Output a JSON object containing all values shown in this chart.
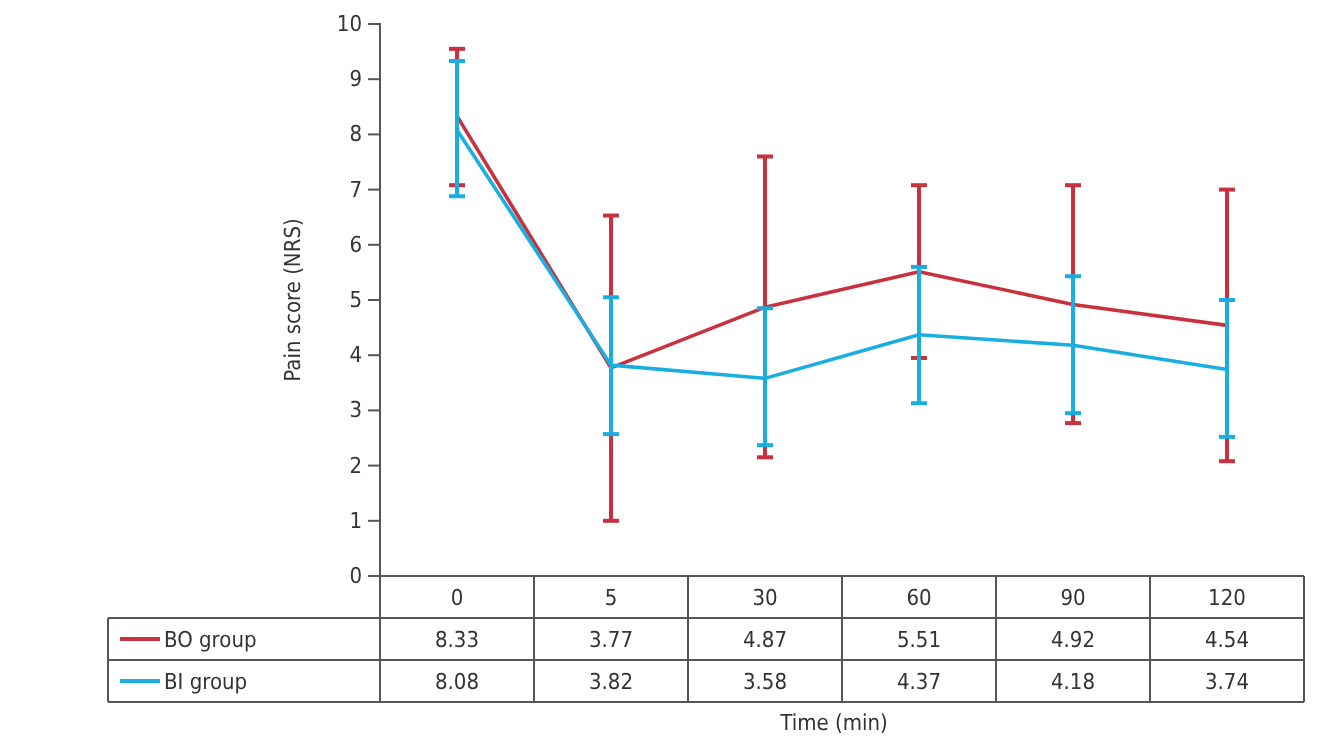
{
  "chart_data": {
    "type": "line",
    "xlabel": "Time (min)",
    "ylabel": "Pain score (NRS)",
    "categories": [
      "0",
      "5",
      "30",
      "60",
      "90",
      "120"
    ],
    "ylim": [
      0,
      10
    ],
    "yticks": [
      0,
      1,
      2,
      3,
      4,
      5,
      6,
      7,
      8,
      9,
      10
    ],
    "data_labels": true,
    "legend": "bottom",
    "marker": "none",
    "line_style": "solid",
    "series": [
      {
        "name": "BO group",
        "color": "#c8313e",
        "values": [
          8.33,
          3.77,
          4.87,
          5.51,
          4.92,
          4.54
        ],
        "errors": [
          [
            7.08,
            9.55
          ],
          [
            1.0,
            6.53
          ],
          [
            2.15,
            7.6
          ],
          [
            3.95,
            7.08
          ],
          [
            2.77,
            7.08
          ],
          [
            2.08,
            7.0
          ]
        ]
      },
      {
        "name": "BI group",
        "color": "#1aaee0",
        "values": [
          8.08,
          3.82,
          3.58,
          4.37,
          4.18,
          3.74
        ],
        "errors": [
          [
            6.88,
            9.33
          ],
          [
            2.57,
            5.05
          ],
          [
            2.37,
            4.85
          ],
          [
            3.13,
            5.6
          ],
          [
            2.95,
            5.43
          ],
          [
            2.52,
            5.0
          ]
        ]
      }
    ]
  }
}
